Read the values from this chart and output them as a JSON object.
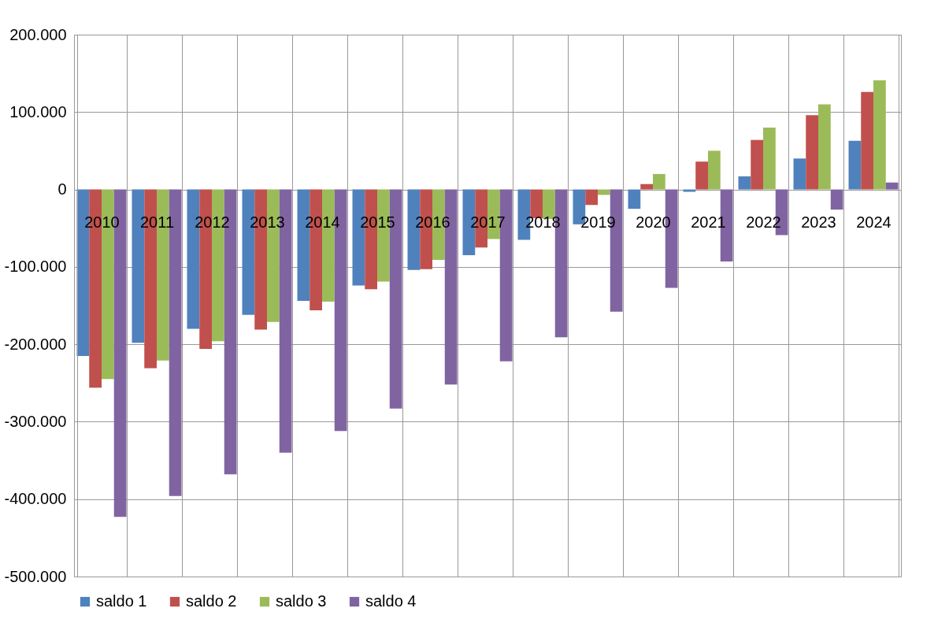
{
  "chart_data": {
    "type": "bar",
    "categories": [
      "2010",
      "2011",
      "2012",
      "2013",
      "2014",
      "2015",
      "2016",
      "2017",
      "2018",
      "2019",
      "2020",
      "2021",
      "2022",
      "2023",
      "2024"
    ],
    "series": [
      {
        "name": "saldo 1",
        "color": "#4f81bd",
        "values": [
          -215000,
          -198000,
          -180000,
          -162000,
          -144000,
          -124000,
          -104000,
          -85000,
          -65000,
          -45000,
          -25000,
          -3000,
          17000,
          40000,
          63000
        ]
      },
      {
        "name": "saldo 2",
        "color": "#c0504d",
        "values": [
          -256000,
          -231000,
          -206000,
          -181000,
          -156000,
          -129000,
          -103000,
          -75000,
          -37000,
          -20000,
          7000,
          36000,
          64000,
          96000,
          126000
        ]
      },
      {
        "name": "saldo 3",
        "color": "#9bbb59",
        "values": [
          -245000,
          -221000,
          -196000,
          -171000,
          -145000,
          -119000,
          -91000,
          -64000,
          -38000,
          -7000,
          20000,
          50000,
          80000,
          110000,
          141000
        ]
      },
      {
        "name": "saldo 4",
        "color": "#8064a2",
        "values": [
          -423000,
          -396000,
          -368000,
          -340000,
          -312000,
          -283000,
          -252000,
          -222000,
          -191000,
          -158000,
          -127000,
          -93000,
          -59000,
          -26000,
          9000
        ]
      }
    ],
    "ylim": [
      -500000,
      200000
    ],
    "yticks": [
      {
        "value": -500000,
        "label": "-500.000"
      },
      {
        "value": -400000,
        "label": "-400.000"
      },
      {
        "value": -300000,
        "label": "-300.000"
      },
      {
        "value": -200000,
        "label": "-200.000"
      },
      {
        "value": -100000,
        "label": "-100.000"
      },
      {
        "value": 0,
        "label": "0"
      },
      {
        "value": 100000,
        "label": "100.000"
      },
      {
        "value": 200000,
        "label": "200.000"
      }
    ],
    "grid": true,
    "legend": "bottom"
  }
}
